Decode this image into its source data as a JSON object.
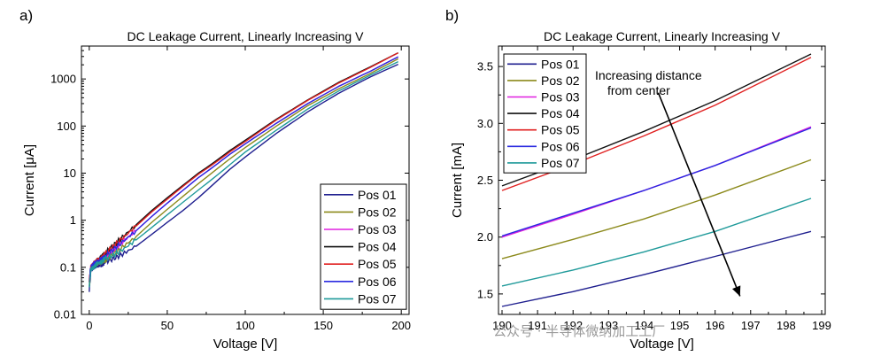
{
  "watermark": "公众号 · 半导体微纳加工工厂",
  "chart_data": [
    {
      "panel_label": "a)",
      "type": "line",
      "title": "DC Leakage Current, Linearly Increasing V",
      "xlabel": "Voltage [V]",
      "ylabel": "Current [μA]",
      "xlim": [
        -5,
        205
      ],
      "ylim": [
        0.01,
        5000
      ],
      "yscale": "log",
      "xticks": [
        "0",
        "50",
        "100",
        "150",
        "200"
      ],
      "yticks": [
        "0.01",
        "0.1",
        "1",
        "10",
        "100",
        "1000"
      ],
      "legend_position": "bottom-right",
      "series": [
        {
          "name": "Pos 01",
          "color": "#1f1f8f",
          "x": [
            0,
            1,
            3,
            5,
            8,
            10,
            15,
            20,
            30,
            40,
            50,
            60,
            70,
            80,
            90,
            100,
            120,
            140,
            160,
            180,
            198
          ],
          "y": [
            0.03,
            0.09,
            0.1,
            0.11,
            0.11,
            0.13,
            0.15,
            0.18,
            0.28,
            0.5,
            0.9,
            1.6,
            3,
            6,
            12,
            22,
            70,
            200,
            500,
            1100,
            2050
          ]
        },
        {
          "name": "Pos 02",
          "color": "#8c8a1c",
          "x": [
            0,
            1,
            3,
            5,
            8,
            10,
            15,
            20,
            30,
            40,
            50,
            60,
            70,
            80,
            90,
            100,
            120,
            140,
            160,
            180,
            198
          ],
          "y": [
            0.04,
            0.1,
            0.11,
            0.12,
            0.13,
            0.14,
            0.19,
            0.25,
            0.45,
            0.9,
            1.7,
            3.2,
            6,
            11,
            20,
            35,
            100,
            270,
            620,
            1300,
            2680
          ]
        },
        {
          "name": "Pos 03",
          "color": "#e020e0",
          "x": [
            0,
            1,
            3,
            5,
            8,
            10,
            15,
            20,
            30,
            40,
            50,
            60,
            70,
            80,
            90,
            100,
            120,
            140,
            160,
            180,
            198
          ],
          "y": [
            0.05,
            0.1,
            0.12,
            0.13,
            0.15,
            0.17,
            0.23,
            0.32,
            0.6,
            1.2,
            2.3,
            4.3,
            8,
            14,
            25,
            42,
            115,
            300,
            700,
            1450,
            2960
          ]
        },
        {
          "name": "Pos 04",
          "color": "#111111",
          "x": [
            0,
            1,
            3,
            5,
            8,
            10,
            15,
            20,
            30,
            40,
            50,
            60,
            70,
            80,
            90,
            100,
            120,
            140,
            160,
            180,
            198
          ],
          "y": [
            0.05,
            0.1,
            0.12,
            0.14,
            0.17,
            0.2,
            0.28,
            0.4,
            0.8,
            1.6,
            3,
            5.5,
            10,
            17,
            30,
            50,
            140,
            360,
            850,
            1800,
            3600
          ]
        },
        {
          "name": "Pos 05",
          "color": "#e02020",
          "x": [
            0,
            1,
            3,
            5,
            8,
            10,
            15,
            20,
            30,
            40,
            50,
            60,
            70,
            80,
            90,
            100,
            120,
            140,
            160,
            180,
            198
          ],
          "y": [
            0.05,
            0.1,
            0.12,
            0.14,
            0.16,
            0.19,
            0.27,
            0.38,
            0.75,
            1.5,
            2.8,
            5.2,
            9.5,
            16,
            28,
            47,
            135,
            350,
            820,
            1750,
            3580
          ]
        },
        {
          "name": "Pos 06",
          "color": "#2a2ae0",
          "x": [
            0,
            1,
            3,
            5,
            8,
            10,
            15,
            20,
            30,
            40,
            50,
            60,
            70,
            80,
            90,
            100,
            120,
            140,
            160,
            180,
            198
          ],
          "y": [
            0.05,
            0.1,
            0.12,
            0.13,
            0.15,
            0.17,
            0.23,
            0.32,
            0.6,
            1.2,
            2.3,
            4.3,
            8,
            14,
            25,
            42,
            115,
            300,
            700,
            1450,
            2950
          ]
        },
        {
          "name": "Pos 07",
          "color": "#1f9a9a",
          "x": [
            0,
            1,
            3,
            5,
            8,
            10,
            15,
            20,
            30,
            40,
            50,
            60,
            70,
            80,
            90,
            100,
            120,
            140,
            160,
            180,
            198
          ],
          "y": [
            0.04,
            0.09,
            0.1,
            0.12,
            0.13,
            0.15,
            0.18,
            0.22,
            0.38,
            0.7,
            1.3,
            2.4,
            4.4,
            8,
            15,
            28,
            82,
            230,
            560,
            1200,
            2330
          ]
        }
      ]
    },
    {
      "panel_label": "b)",
      "type": "line",
      "title": "DC Leakage Current, Linearly Increasing V",
      "xlabel": "Voltage [V]",
      "ylabel": "Current [mA]",
      "xlim": [
        189.9,
        199.1
      ],
      "ylim": [
        1.32,
        3.68
      ],
      "xticks": [
        "190",
        "191",
        "192",
        "193",
        "194",
        "195",
        "196",
        "197",
        "198",
        "199"
      ],
      "yticks": [
        "1.5",
        "2.0",
        "2.5",
        "3.0",
        "3.5"
      ],
      "legend_position": "top-left",
      "annotation": "Increasing distance from center",
      "arrow": {
        "from": [
          194.4,
          3.27
        ],
        "to": [
          196.7,
          1.48
        ]
      },
      "series": [
        {
          "name": "Pos 01",
          "color": "#1f1f8f",
          "x": [
            190,
            192,
            194,
            196,
            198.7
          ],
          "y": [
            1.39,
            1.52,
            1.67,
            1.83,
            2.05
          ]
        },
        {
          "name": "Pos 02",
          "color": "#8c8a1c",
          "x": [
            190,
            192,
            194,
            196,
            198.7
          ],
          "y": [
            1.81,
            1.98,
            2.16,
            2.37,
            2.68
          ]
        },
        {
          "name": "Pos 03",
          "color": "#e020e0",
          "x": [
            190,
            192,
            194,
            196,
            198.7
          ],
          "y": [
            2.0,
            2.2,
            2.41,
            2.63,
            2.97
          ]
        },
        {
          "name": "Pos 04",
          "color": "#111111",
          "x": [
            190,
            192,
            194,
            196,
            198.7
          ],
          "y": [
            2.45,
            2.68,
            2.93,
            3.2,
            3.61
          ]
        },
        {
          "name": "Pos 05",
          "color": "#e02020",
          "x": [
            190,
            192,
            194,
            196,
            198.7
          ],
          "y": [
            2.41,
            2.64,
            2.89,
            3.16,
            3.58
          ]
        },
        {
          "name": "Pos 06",
          "color": "#2a2ae0",
          "x": [
            190,
            192,
            194,
            196,
            198.7
          ],
          "y": [
            2.01,
            2.21,
            2.41,
            2.63,
            2.96
          ]
        },
        {
          "name": "Pos 07",
          "color": "#1f9a9a",
          "x": [
            190,
            192,
            194,
            196,
            198.7
          ],
          "y": [
            1.57,
            1.71,
            1.87,
            2.05,
            2.34
          ]
        }
      ]
    }
  ]
}
